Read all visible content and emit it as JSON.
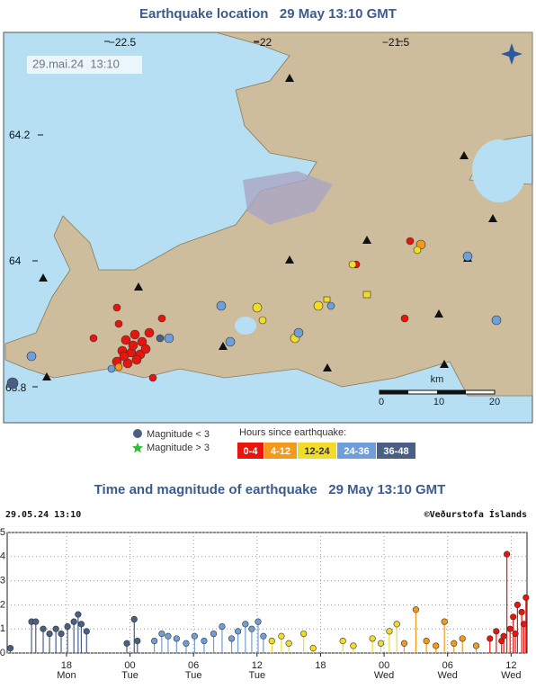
{
  "header": {
    "title": "Earthquake location   29 May 13:10 GMT"
  },
  "map": {
    "timestamp": "29.mai.24  13:10",
    "lon_labels": [
      "−22.5",
      "−22",
      "−21.5"
    ],
    "lat_labels": [
      "64.2",
      "64",
      "63.8"
    ],
    "scale": {
      "unit": "km",
      "labels": [
        "0",
        "10",
        "20"
      ]
    }
  },
  "legend": {
    "small": "Magnitude < 3",
    "large": "Magnitude > 3",
    "hours_title": "Hours since earthquake:",
    "classes": [
      {
        "label": "0-4",
        "color": "#e8140e"
      },
      {
        "label": "4-12",
        "color": "#f39a1c"
      },
      {
        "label": "12-24",
        "color": "#f2dc2a"
      },
      {
        "label": "24-36",
        "color": "#6f9fd8"
      },
      {
        "label": "36-48",
        "color": "#4a5f86"
      }
    ]
  },
  "chart_data": {
    "type": "scatter",
    "title": "Time and magnitude of earthquake   29 May 13:10 GMT",
    "timestamp": "29.05.24 13:10",
    "credit": "©Veðurstofa Íslands",
    "ylim": [
      0,
      5
    ],
    "yticks": [
      0,
      1,
      2,
      3,
      4,
      5
    ],
    "xlim": [
      12.4,
      61.5
    ],
    "xticks": [
      18,
      {
        "value": 24,
        "label": "00"
      },
      {
        "value": 30,
        "label": "06"
      },
      {
        "value": 36,
        "label": "12"
      },
      {
        "value": 42,
        "label": "18"
      },
      {
        "value": 48,
        "label": "00"
      },
      {
        "value": 54,
        "label": "06"
      },
      {
        "value": 60,
        "label": "12"
      }
    ],
    "xtick_days": [
      "Mon",
      "Tue",
      "Tue",
      "Tue",
      null,
      "Wed",
      "Wed",
      "Wed"
    ],
    "grid": true,
    "series": [
      {
        "color": "#4a5f86",
        "x": [
          12.7,
          14.7,
          15.1,
          15.8,
          16.4,
          17.0,
          17.5,
          18.1,
          18.7,
          19.1,
          19.4,
          19.9,
          23.7,
          24.4,
          24.7
        ],
        "values": [
          0.2,
          1.3,
          1.3,
          1.0,
          0.8,
          1.0,
          0.8,
          1.1,
          1.3,
          1.6,
          1.2,
          0.9,
          0.4,
          1.4,
          0.5
        ]
      },
      {
        "color": "#6f9fd8",
        "x": [
          26.3,
          27.0,
          27.6,
          28.4,
          29.3,
          30.1,
          31.0,
          31.9,
          32.7,
          33.6,
          34.2,
          34.9,
          35.5,
          36.1,
          36.6
        ],
        "values": [
          0.5,
          0.8,
          0.7,
          0.6,
          0.4,
          0.7,
          0.5,
          0.8,
          1.1,
          0.6,
          0.9,
          1.2,
          1.0,
          1.3,
          0.7
        ]
      },
      {
        "color": "#f2dc2a",
        "x": [
          37.4,
          38.3,
          39.0,
          40.4,
          41.3,
          44.1,
          45.1,
          46.9,
          47.7,
          48.5,
          49.2
        ],
        "values": [
          0.5,
          0.7,
          0.4,
          0.8,
          0.2,
          0.5,
          0.3,
          0.6,
          0.4,
          0.9,
          1.2
        ]
      },
      {
        "color": "#f39a1c",
        "x": [
          49.9,
          51.0,
          52.0,
          52.9,
          53.7,
          54.6,
          55.4,
          56.7
        ],
        "values": [
          0.4,
          1.8,
          0.5,
          0.3,
          1.3,
          0.4,
          0.6,
          0.3
        ]
      },
      {
        "color": "#e8140e",
        "x": [
          58.0,
          58.6,
          59.1,
          59.3,
          59.6,
          59.9,
          60.2,
          60.4,
          60.6,
          61.0,
          61.2,
          61.4
        ],
        "values": [
          0.6,
          0.9,
          0.5,
          0.7,
          4.1,
          1.0,
          1.5,
          0.8,
          2.0,
          1.7,
          1.2,
          2.3
        ]
      }
    ]
  }
}
